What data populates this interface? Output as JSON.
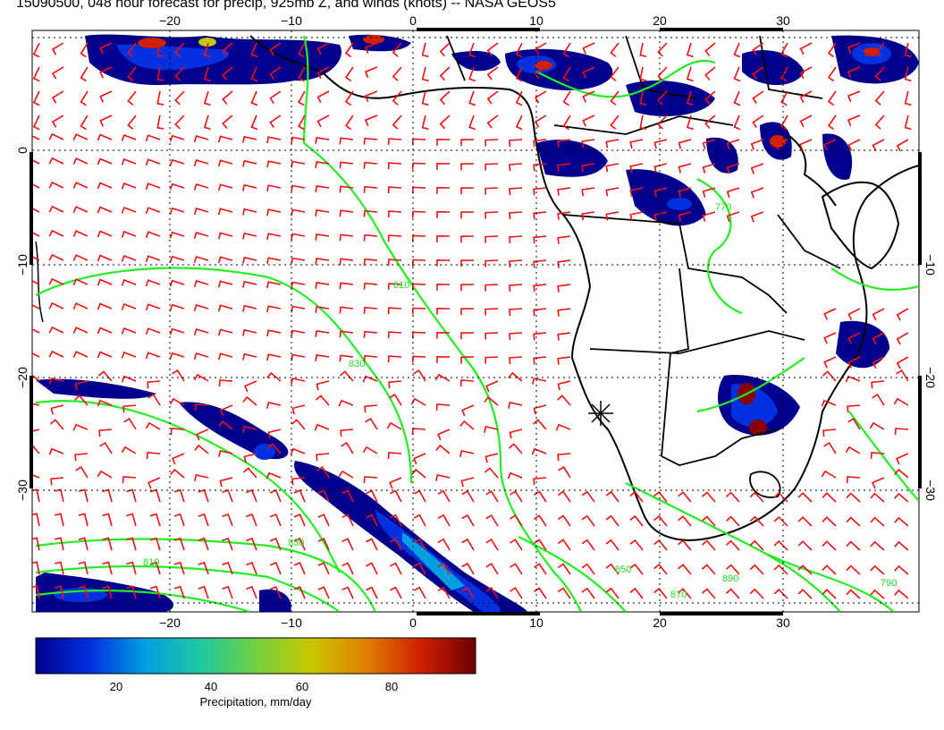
{
  "title": "15090500, 048 hour forecast for precip, 925mb Z, and winds (knots) -- NASA GEOS5",
  "colors": {
    "wind_barb": "#ee1111",
    "contour": "#22ee22",
    "coast": "#000000",
    "grid": "#000000"
  },
  "colormap": [
    "#00008c",
    "#0030e0",
    "#00a0e0",
    "#20c8a0",
    "#70d040",
    "#c8c800",
    "#e08000",
    "#d02000",
    "#6a0000"
  ],
  "axes": {
    "lon_top": [
      "−20",
      "−10",
      "0",
      "10",
      "20",
      "30"
    ],
    "lon_bottom": [
      "−20",
      "−10",
      "0",
      "10",
      "20",
      "30"
    ],
    "lat_left": [
      "0",
      "−10",
      "−20",
      "−30"
    ],
    "lat_right": [
      "−10",
      "−20",
      "−30"
    ]
  },
  "contour_labels": [
    "770",
    "810",
    "830",
    "850",
    "870",
    "890",
    "830",
    "810",
    "790"
  ],
  "colorbar": {
    "ticks": [
      "20",
      "40",
      "60",
      "80"
    ],
    "label": "Precipitation, mm/day"
  }
}
